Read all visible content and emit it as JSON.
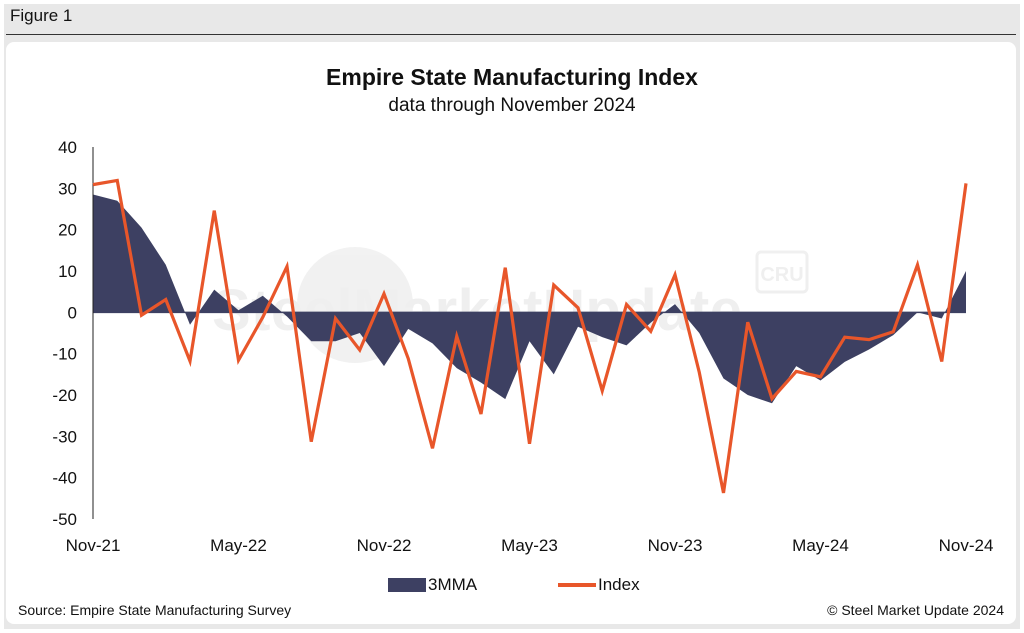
{
  "figure_label": "Figure 1",
  "source": "Source: Empire State Manufacturing Survey",
  "copyright": "© Steel Market Update 2024",
  "watermark": {
    "text": "SteelMarketUpdate",
    "badge": "CRU"
  },
  "colors": {
    "area": "#3d4062",
    "line": "#e8562a",
    "zero_line": "#3d4062"
  },
  "chart_data": {
    "type": "area",
    "title": "Empire State Manufacturing Index",
    "subtitle": "data through November 2024",
    "xlabel": "",
    "ylabel": "",
    "ylim": [
      -50,
      40
    ],
    "yticks": [
      40,
      30,
      20,
      10,
      0,
      -10,
      -20,
      -30,
      -40,
      -50
    ],
    "grid": false,
    "legend_position": "bottom",
    "x": [
      "Nov-21",
      "Dec-21",
      "Jan-22",
      "Feb-22",
      "Mar-22",
      "Apr-22",
      "May-22",
      "Jun-22",
      "Jul-22",
      "Aug-22",
      "Sep-22",
      "Oct-22",
      "Nov-22",
      "Dec-22",
      "Jan-23",
      "Feb-23",
      "Mar-23",
      "Apr-23",
      "May-23",
      "Jun-23",
      "Jul-23",
      "Aug-23",
      "Sep-23",
      "Oct-23",
      "Nov-23",
      "Dec-23",
      "Jan-24",
      "Feb-24",
      "Mar-24",
      "Apr-24",
      "May-24",
      "Jun-24",
      "Jul-24",
      "Aug-24",
      "Sep-24",
      "Oct-24",
      "Nov-24"
    ],
    "xtick_labels": [
      "Nov-21",
      "May-22",
      "Nov-22",
      "May-23",
      "Nov-23",
      "May-24",
      "Nov-24"
    ],
    "xtick_positions": [
      0,
      6,
      12,
      18,
      24,
      30,
      36
    ],
    "series": [
      {
        "name": "3MMA",
        "type": "area",
        "values": [
          28.5,
          27.0,
          20.5,
          11.5,
          -3.0,
          5.5,
          0.5,
          4.0,
          -1.0,
          -7.0,
          -7.0,
          -5.0,
          -13.0,
          -4.0,
          -7.5,
          -13.5,
          -17.0,
          -21.0,
          -7.0,
          -15.0,
          -3.5,
          -6.0,
          -8.0,
          -2.5,
          2.0,
          -5.0,
          -16.0,
          -20.0,
          -22.0,
          -13.0,
          -16.5,
          -12.0,
          -9.0,
          -5.5,
          0.0,
          -1.5,
          10.0
        ]
      },
      {
        "name": "Index",
        "type": "line",
        "values": [
          30.9,
          31.9,
          -0.7,
          3.1,
          -11.8,
          24.6,
          -11.6,
          -1.2,
          11.1,
          -31.3,
          -1.5,
          -9.1,
          4.5,
          -11.2,
          -32.9,
          -5.8,
          -24.6,
          10.8,
          -31.8,
          6.6,
          1.1,
          -19.0,
          1.9,
          -4.6,
          9.1,
          -14.5,
          -43.7,
          -2.4,
          -20.9,
          -14.3,
          -15.6,
          -6.0,
          -6.6,
          -4.7,
          11.5,
          -11.9,
          31.2
        ]
      }
    ]
  }
}
